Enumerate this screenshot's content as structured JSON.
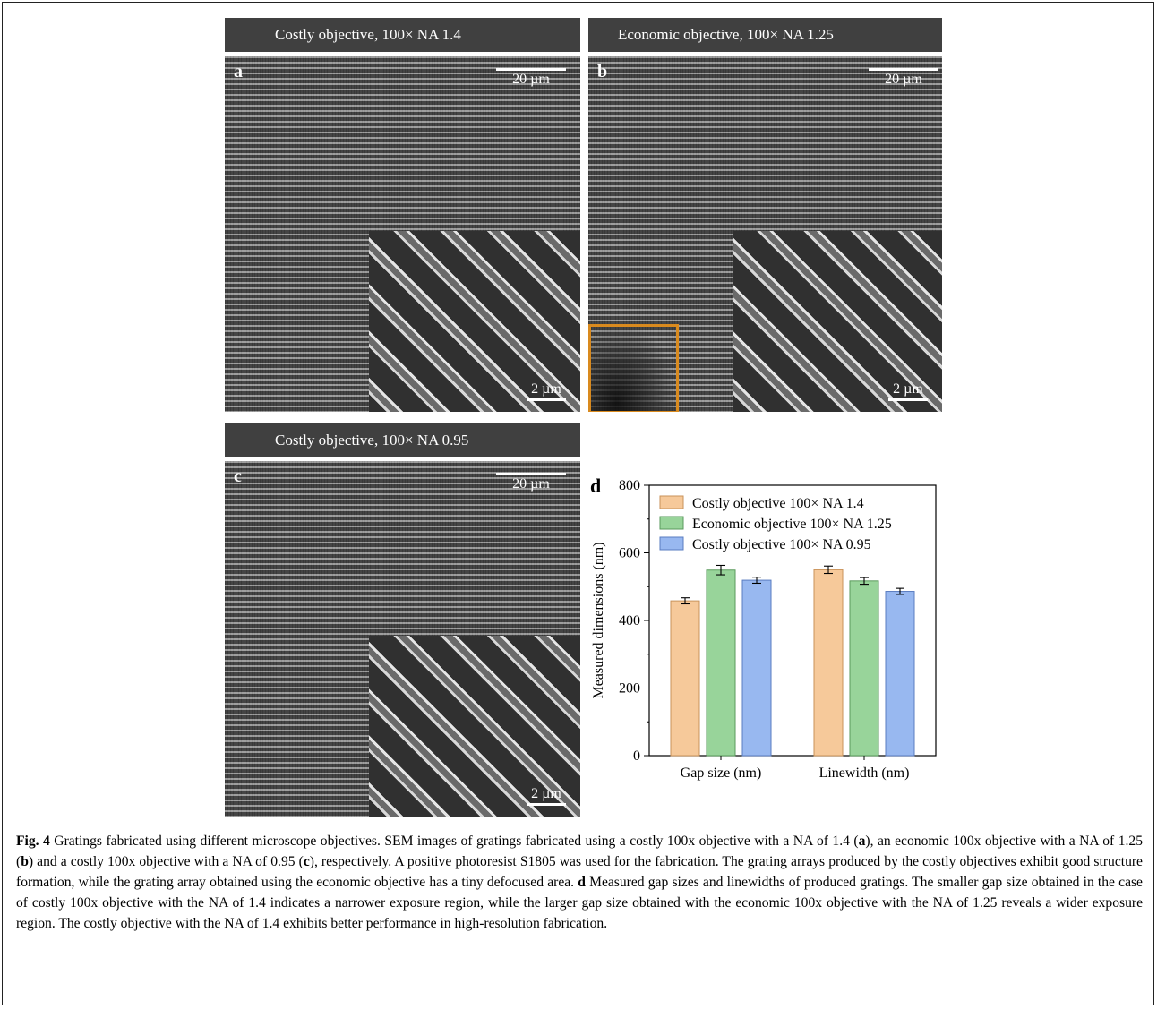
{
  "panels": {
    "a": {
      "header": "Costly objective, 100×  NA 1.4",
      "label": "a",
      "scale_main": "20 µm",
      "scale_inset": "2 µm"
    },
    "b": {
      "header": "Economic  objective, 100×  NA 1.25",
      "label": "b",
      "scale_main": "20 µm",
      "scale_inset": "2 µm"
    },
    "c": {
      "header": "Costly objective, 100×  NA 0.95",
      "label": "c",
      "scale_main": "20 µm",
      "scale_inset": "2 µm"
    }
  },
  "colors": {
    "header_bg": "#404040",
    "highlight_box": "#d98a1e",
    "series": [
      "#f6c99a",
      "#98d49a",
      "#98b8f0"
    ],
    "series_stroke": [
      "#c8925a",
      "#5a9a5c",
      "#5a7cc0"
    ]
  },
  "chart_data": {
    "type": "bar",
    "panel_label": "d",
    "categories": [
      "Gap size (nm)",
      "Linewidth (nm)"
    ],
    "series": [
      {
        "name": "Costly objective 100× NA 1.4",
        "values": [
          458,
          550
        ],
        "errors": [
          9,
          11
        ]
      },
      {
        "name": "Economic objective 100× NA 1.25",
        "values": [
          549,
          517
        ],
        "errors": [
          14,
          10
        ]
      },
      {
        "name": "Costly objective 100× NA 0.95",
        "values": [
          519,
          486
        ],
        "errors": [
          9,
          9
        ]
      }
    ],
    "ylabel": "Measured dimensions (nm)",
    "ylim": [
      0,
      800
    ],
    "yticks": [
      0,
      200,
      400,
      600,
      800
    ],
    "legend_position": "top-left",
    "grid": false
  },
  "caption": {
    "fig_label": "Fig. 4",
    "p1": " Gratings fabricated using different microscope objectives. SEM images of gratings fabricated using a costly 100x objective with a NA of 1.4 (",
    "a": "a",
    "p2": "), an economic 100x objective with a NA of 1.25 (",
    "b": "b",
    "p3": ") and a costly 100x objective with a NA of 0.95 (",
    "c": "c",
    "p4": "), respectively. A positive photoresist S1805 was used for the fabrication. The grating arrays produced by the costly objectives exhibit good structure formation, while the grating array obtained using the economic objective has a tiny defocused area. ",
    "d": "d",
    "p5": " Measured gap sizes and linewidths of produced gratings. The smaller gap size obtained in the case of costly 100x objective with the NA of 1.4 indicates a narrower exposure region, while the larger gap size obtained with the economic 100x objective with the NA of 1.25 reveals a wider exposure region. The costly objective with the NA of 1.4 exhibits better performance in high-resolution fabrication."
  }
}
